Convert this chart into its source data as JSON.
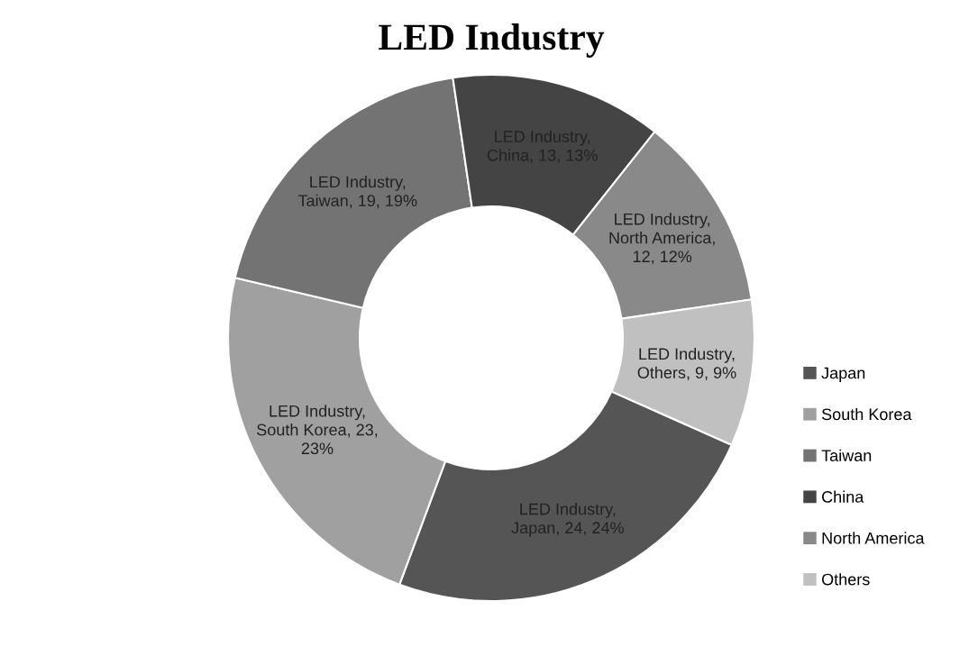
{
  "chart_data": {
    "type": "donut",
    "title": "LED Industry",
    "categories": [
      "Japan",
      "South Korea",
      "Taiwan",
      "China",
      "North America",
      "Others"
    ],
    "values": [
      24,
      23,
      19,
      13,
      12,
      9
    ],
    "colors": [
      "#555555",
      "#a0a0a0",
      "#737373",
      "#444444",
      "#898989",
      "#c0c0c0"
    ],
    "value_labels": [
      "LED Industry,\nJapan, 24, 24%",
      "LED Industry,\nSouth Korea, 23,\n23%",
      "LED Industry,\nTaiwan, 19, 19%",
      "LED Industry,\nChina, 13, 13%",
      "LED Industry,\nNorth America,\n12, 12%",
      "LED Industry,\nOthers, 9, 9%"
    ],
    "legend": "right"
  }
}
